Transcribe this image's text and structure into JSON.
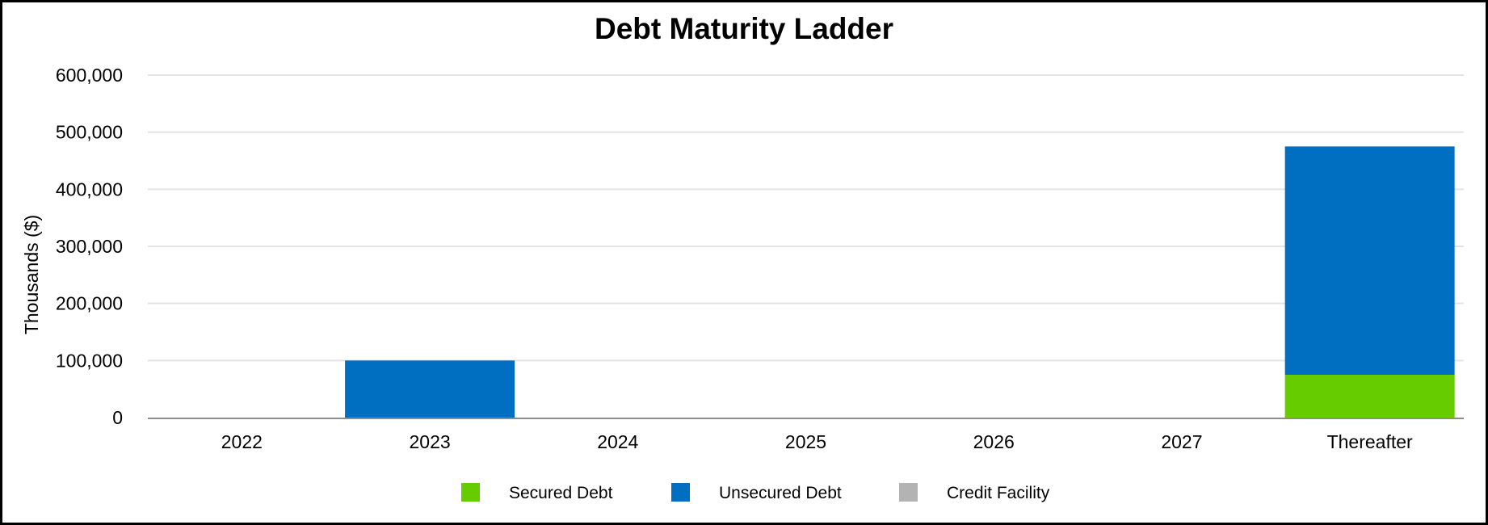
{
  "chart_data": {
    "type": "bar",
    "stacked": true,
    "title": "Debt Maturity Ladder",
    "xlabel": "",
    "ylabel": "Thousands ($)",
    "ylim": [
      0,
      600000
    ],
    "yticks": [
      0,
      100000,
      200000,
      300000,
      400000,
      500000,
      600000
    ],
    "ytick_labels": [
      "0",
      "100,000",
      "200,000",
      "300,000",
      "400,000",
      "500,000",
      "600,000"
    ],
    "categories": [
      "2022",
      "2023",
      "2024",
      "2025",
      "2026",
      "2027",
      "Thereafter"
    ],
    "series": [
      {
        "name": "Secured Debt",
        "color": "#66cc00",
        "values": [
          0,
          0,
          0,
          0,
          0,
          0,
          75000
        ]
      },
      {
        "name": "Unsecured Debt",
        "color": "#006fc2",
        "values": [
          0,
          100000,
          0,
          0,
          0,
          0,
          400000
        ]
      },
      {
        "name": "Credit Facility",
        "color": "#b3b3b3",
        "values": [
          0,
          0,
          0,
          0,
          0,
          0,
          0
        ]
      }
    ],
    "grid": true,
    "legend_position": "bottom"
  }
}
